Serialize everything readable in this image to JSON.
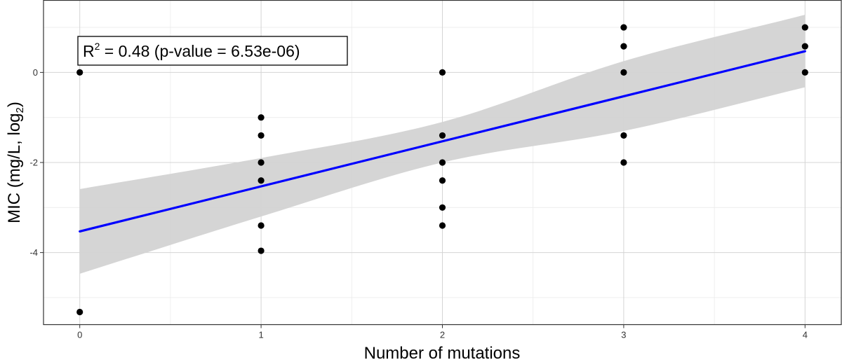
{
  "chart_data": {
    "type": "scatter",
    "xlabel": "Number of mutations",
    "ylabel": {
      "main": "MIC (mg/L, log",
      "subscript": "2",
      "close": ")"
    },
    "xlim": [
      -0.2,
      4.2
    ],
    "ylim": [
      -5.6,
      1.6
    ],
    "x_ticks": [
      0,
      1,
      2,
      3,
      4
    ],
    "y_ticks": [
      -4,
      -2,
      0
    ],
    "x_minor_grid": [
      0.5,
      1.5,
      2.5,
      3.5
    ],
    "y_minor_grid": [
      -5,
      -3,
      -1,
      1
    ],
    "grid": true,
    "points": [
      {
        "x": 0,
        "y": 0
      },
      {
        "x": 0,
        "y": -5.32
      },
      {
        "x": 1,
        "y": -1.0
      },
      {
        "x": 1,
        "y": -1.4
      },
      {
        "x": 1,
        "y": -2.0
      },
      {
        "x": 1,
        "y": -2.4
      },
      {
        "x": 1,
        "y": -3.4
      },
      {
        "x": 1,
        "y": -3.96
      },
      {
        "x": 2,
        "y": 0
      },
      {
        "x": 2,
        "y": -1.4
      },
      {
        "x": 2,
        "y": -2.0
      },
      {
        "x": 2,
        "y": -2.4
      },
      {
        "x": 2,
        "y": -3.0
      },
      {
        "x": 2,
        "y": -3.4
      },
      {
        "x": 3,
        "y": 1.0
      },
      {
        "x": 3,
        "y": 0.58
      },
      {
        "x": 3,
        "y": 0
      },
      {
        "x": 3,
        "y": -1.4
      },
      {
        "x": 3,
        "y": -2.0
      },
      {
        "x": 4,
        "y": 1.0
      },
      {
        "x": 4,
        "y": 0.58
      },
      {
        "x": 4,
        "y": 0
      }
    ],
    "regression": {
      "intercept": -3.53,
      "slope": 1.0,
      "x_range": [
        0,
        4
      ],
      "ci_band": [
        {
          "x": 0,
          "lower": -4.47,
          "upper": -2.59
        },
        {
          "x": 1,
          "lower": -3.2,
          "upper": -1.9
        },
        {
          "x": 2,
          "lower": -2.0,
          "upper": -1.1
        },
        {
          "x": 3,
          "lower": -1.3,
          "upper": 0.25
        },
        {
          "x": 4,
          "lower": -0.33,
          "upper": 1.28
        }
      ],
      "line_color": "#0000ff",
      "band_color": "#d3d3d3"
    },
    "annotation": {
      "prefix": "R",
      "sup": "2",
      "text": " = 0.48 (p-value = 6.53e-06)"
    },
    "point_color": "#000000"
  }
}
